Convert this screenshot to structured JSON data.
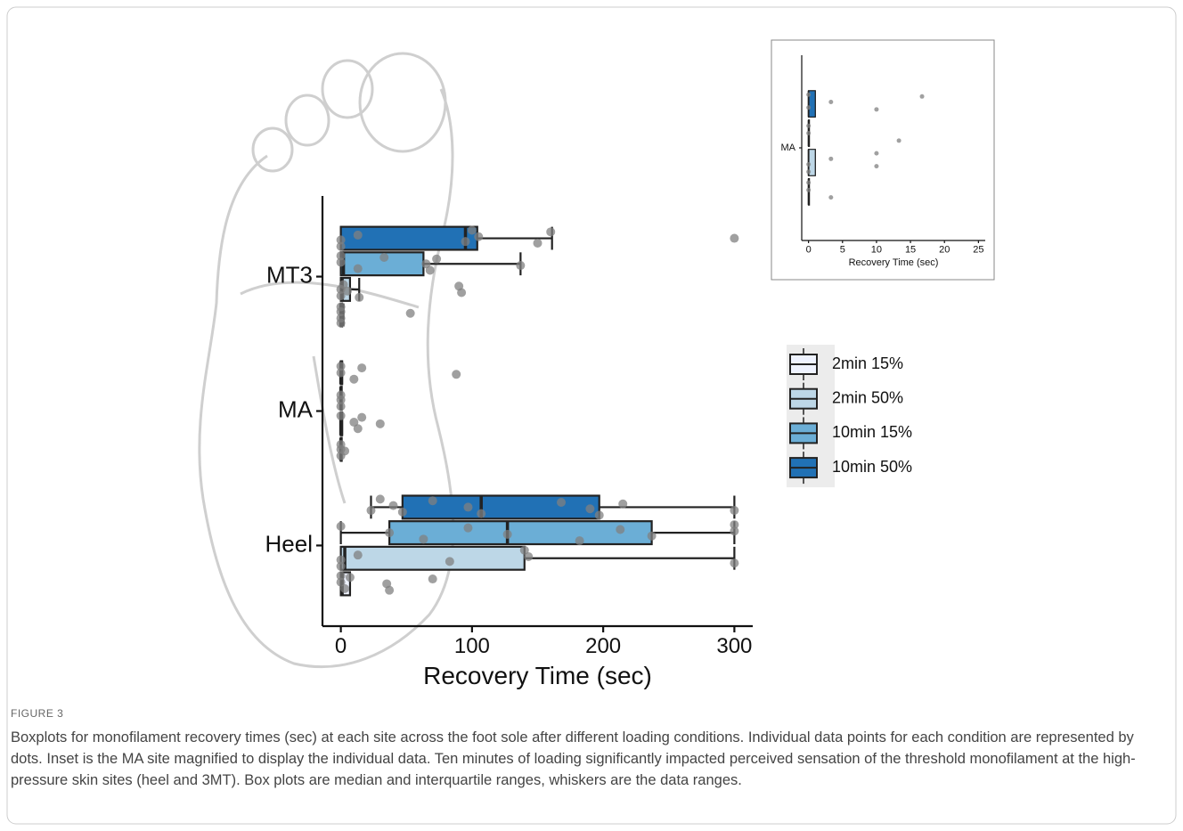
{
  "figure": {
    "label": "FIGURE 3",
    "caption": "Boxplots for monofilament recovery times (sec) at each site across the foot sole after different loading conditions. Individual data points for each condition are represented by dots. Inset is the MA site magnified to display the individual data. Ten minutes of loading significantly impacted perceived sensation of the threshold monofilament at the high-pressure skin sites (heel and 3MT). Box plots are median and interquartile ranges, whiskers are the data ranges."
  },
  "chart_data": [
    {
      "type": "box",
      "x_label": "Recovery Time (sec)",
      "categories": [
        "Heel",
        "MA",
        "MT3"
      ],
      "xlim": [
        -14,
        314
      ],
      "xticks": [
        0,
        100,
        200,
        300
      ],
      "legend": "right",
      "point_color": "#808080",
      "series": [
        {
          "name": "2min 15%",
          "color": "#eff3ff",
          "boxes": [
            [
              0,
              0,
              1,
              7,
              7
            ],
            [
              0,
              0,
              0,
              0,
              0
            ],
            [
              0,
              0,
              0,
              1,
              2
            ]
          ],
          "points": [
            [
              0,
              0,
              3,
              7,
              35,
              37,
              70
            ],
            [
              0,
              0,
              0,
              3
            ],
            [
              0,
              0,
              0,
              0,
              53
            ]
          ]
        },
        {
          "name": "2min 50%",
          "color": "#bdd7e7",
          "boxes": [
            [
              0,
              0,
              3,
              140,
              300
            ],
            [
              0,
              0,
              0,
              1,
              1
            ],
            [
              0,
              0,
              1,
              7,
              14
            ]
          ],
          "points": [
            [
              0,
              0,
              13,
              83,
              140,
              143,
              300
            ],
            [
              0,
              10,
              13,
              16,
              30
            ],
            [
              0,
              0,
              2,
              5,
              14,
              90,
              92
            ]
          ]
        },
        {
          "name": "10min 15%",
          "color": "#6baed6",
          "boxes": [
            [
              0,
              37,
              127,
              237,
              300
            ],
            [
              0,
              0,
              0,
              0,
              0
            ],
            [
              0,
              0,
              2,
              63,
              137
            ]
          ],
          "points": [
            [
              0,
              37,
              63,
              97,
              127,
              182,
              213,
              237,
              300,
              300
            ],
            [
              0,
              0,
              0
            ],
            [
              0,
              0,
              13,
              33,
              65,
              68,
              73,
              137
            ]
          ]
        },
        {
          "name": "10min 50%",
          "color": "#2171b5",
          "boxes": [
            [
              23,
              47,
              107,
              197,
              300
            ],
            [
              0,
              0,
              0,
              1,
              1
            ],
            [
              0,
              0,
              95,
              104,
              161
            ]
          ],
          "points": [
            [
              23,
              30,
              40,
              47,
              70,
              97,
              107,
              168,
              190,
              197,
              215,
              300
            ],
            [
              0,
              0,
              10,
              16,
              88
            ],
            [
              0,
              0,
              13,
              95,
              100,
              105,
              150,
              160,
              300
            ]
          ]
        }
      ]
    },
    {
      "type": "box",
      "x_label": "Recovery Time (sec)",
      "categories": [
        "MA"
      ],
      "xlim": [
        -1,
        26
      ],
      "xticks": [
        0,
        5,
        10,
        15,
        20,
        25
      ],
      "point_color": "#808080",
      "series": [
        {
          "name": "2min 15%",
          "color": "#eff3ff",
          "boxes": [
            [
              0,
              0,
              0,
              0,
              0
            ]
          ],
          "points": [
            [
              0,
              0,
              3.3
            ]
          ]
        },
        {
          "name": "2min 50%",
          "color": "#bdd7e7",
          "boxes": [
            [
              0,
              0,
              0,
              1,
              1
            ]
          ],
          "points": [
            [
              0,
              0,
              3.3,
              10,
              10
            ]
          ]
        },
        {
          "name": "10min 15%",
          "color": "#6baed6",
          "boxes": [
            [
              0,
              0,
              0,
              0,
              0
            ]
          ],
          "points": [
            [
              0,
              0,
              13.3
            ]
          ]
        },
        {
          "name": "10min 50%",
          "color": "#2171b5",
          "boxes": [
            [
              0,
              0,
              0,
              1,
              1
            ]
          ],
          "points": [
            [
              0,
              0,
              3.3,
              10,
              16.7
            ]
          ]
        }
      ]
    }
  ]
}
